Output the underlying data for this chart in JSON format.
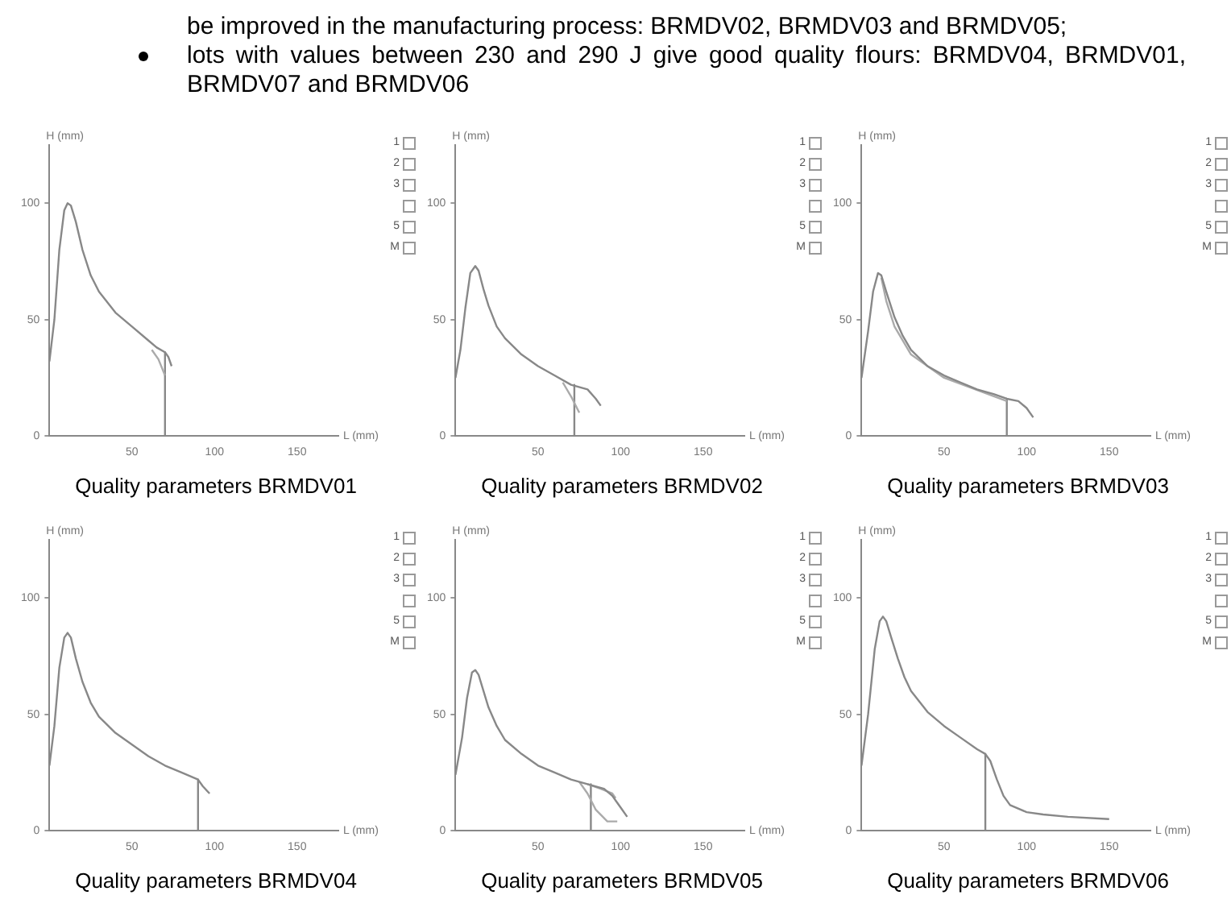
{
  "chart_data": [
    {
      "type": "line",
      "title": "Quality parameters BRMDV01",
      "subtitle": "be improved in the manufacturing process: BRMDV02, BRMDV03 and BRMDV05;\nlots with values between 230 and 290 J give good quality flours: BRMDV04, BRMDV01, BRMDV07 and BRMDV06",
      "xlabel": "L (mm)",
      "ylabel": "H (mm)",
      "xlim": [
        0,
        175
      ],
      "ylim": [
        0,
        125
      ],
      "xticks": [
        50,
        100,
        150
      ],
      "yticks": [
        0,
        50,
        100
      ],
      "grid": false,
      "marker": "none",
      "annotations": [
        "1",
        "2",
        "3",
        "5",
        "M"
      ],
      "series": [
        {
          "color": "#888888",
          "x": [
            0,
            3,
            6,
            9,
            11,
            13,
            16,
            20,
            25,
            30,
            40,
            50,
            60,
            65,
            70,
            72,
            74
          ],
          "values": [
            32,
            50,
            80,
            97,
            100,
            99,
            92,
            80,
            69,
            62,
            53,
            47,
            41,
            38,
            36,
            34,
            30
          ]
        },
        {
          "color": "#aaaaaa",
          "x": [
            62,
            66,
            70
          ],
          "values": [
            37,
            33,
            26
          ]
        },
        {
          "color": "#888888",
          "x": [
            70,
            70
          ],
          "values": [
            36,
            0
          ]
        }
      ]
    },
    {
      "type": "line",
      "title": "Quality parameters BRMDV02",
      "xlabel": "L (mm)",
      "ylabel": "H (mm)",
      "xlim": [
        0,
        175
      ],
      "ylim": [
        0,
        125
      ],
      "xticks": [
        50,
        100,
        150
      ],
      "yticks": [
        0,
        50,
        100
      ],
      "grid": false,
      "marker": "none",
      "annotations": [
        "1",
        "2",
        "3",
        "5",
        "M"
      ],
      "series": [
        {
          "color": "#888888",
          "x": [
            0,
            3,
            6,
            9,
            12,
            14,
            17,
            20,
            25,
            30,
            40,
            50,
            60,
            70,
            80,
            85,
            88
          ],
          "values": [
            25,
            37,
            55,
            70,
            73,
            71,
            63,
            56,
            47,
            42,
            35,
            30,
            26,
            22,
            20,
            16,
            13
          ]
        },
        {
          "color": "#aaaaaa",
          "x": [
            65,
            70,
            75
          ],
          "values": [
            23,
            17,
            10
          ]
        },
        {
          "color": "#888888",
          "x": [
            72,
            72
          ],
          "values": [
            22,
            0
          ]
        }
      ]
    },
    {
      "type": "line",
      "title": "Quality parameters BRMDV03",
      "xlabel": "L (mm)",
      "ylabel": "H (mm)",
      "xlim": [
        0,
        175
      ],
      "ylim": [
        0,
        125
      ],
      "xticks": [
        50,
        100,
        150
      ],
      "yticks": [
        0,
        50,
        100
      ],
      "grid": false,
      "marker": "none",
      "annotations": [
        "1",
        "2",
        "3",
        "5",
        "M"
      ],
      "series": [
        {
          "color": "#888888",
          "x": [
            0,
            4,
            7,
            10,
            12,
            15,
            20,
            25,
            30,
            40,
            50,
            60,
            70,
            80,
            88,
            95,
            100,
            104
          ],
          "values": [
            25,
            45,
            62,
            70,
            69,
            62,
            51,
            43,
            37,
            30,
            26,
            23,
            20,
            18,
            16,
            15,
            12,
            8
          ]
        },
        {
          "color": "#aaaaaa",
          "x": [
            12,
            15,
            20,
            30,
            50,
            88
          ],
          "values": [
            68,
            58,
            47,
            35,
            25,
            15
          ]
        },
        {
          "color": "#888888",
          "x": [
            88,
            88
          ],
          "values": [
            16,
            0
          ]
        }
      ]
    },
    {
      "type": "line",
      "title": "Quality parameters BRMDV04",
      "xlabel": "L (mm)",
      "ylabel": "H (mm)",
      "xlim": [
        0,
        175
      ],
      "ylim": [
        0,
        125
      ],
      "xticks": [
        50,
        100,
        150
      ],
      "yticks": [
        0,
        50,
        100
      ],
      "grid": false,
      "marker": "none",
      "annotations": [
        "1",
        "2",
        "3",
        "5",
        "M"
      ],
      "series": [
        {
          "color": "#888888",
          "x": [
            0,
            3,
            6,
            9,
            11,
            13,
            16,
            20,
            25,
            30,
            40,
            50,
            60,
            70,
            80,
            90,
            93,
            97
          ],
          "values": [
            28,
            45,
            70,
            83,
            85,
            83,
            74,
            64,
            55,
            49,
            42,
            37,
            32,
            28,
            25,
            22,
            19,
            16
          ]
        },
        {
          "color": "#888888",
          "x": [
            90,
            90
          ],
          "values": [
            22,
            0
          ]
        }
      ]
    },
    {
      "type": "line",
      "title": "Quality parameters BRMDV05",
      "xlabel": "L (mm)",
      "ylabel": "H (mm)",
      "xlim": [
        0,
        175
      ],
      "ylim": [
        0,
        125
      ],
      "xticks": [
        50,
        100,
        150
      ],
      "yticks": [
        0,
        50,
        100
      ],
      "grid": false,
      "marker": "none",
      "annotations": [
        "1",
        "2",
        "3",
        "5",
        "M"
      ],
      "series": [
        {
          "color": "#888888",
          "x": [
            0,
            4,
            7,
            10,
            12,
            14,
            17,
            20,
            25,
            30,
            40,
            50,
            60,
            70,
            80,
            90,
            95,
            100,
            104
          ],
          "values": [
            24,
            40,
            57,
            68,
            69,
            67,
            60,
            53,
            45,
            39,
            33,
            28,
            25,
            22,
            20,
            18,
            15,
            10,
            6
          ]
        },
        {
          "color": "#aaaaaa",
          "x": [
            75,
            80,
            85,
            92,
            98
          ],
          "values": [
            21,
            16,
            9,
            4,
            4
          ]
        },
        {
          "color": "#aaaaaa",
          "x": [
            80,
            88,
            95,
            97
          ],
          "values": [
            20,
            18,
            16,
            14
          ]
        },
        {
          "color": "#888888",
          "x": [
            82,
            82
          ],
          "values": [
            20,
            0
          ]
        }
      ]
    },
    {
      "type": "line",
      "title": "Quality parameters BRMDV06",
      "xlabel": "L (mm)",
      "ylabel": "H (mm)",
      "xlim": [
        0,
        175
      ],
      "ylim": [
        0,
        125
      ],
      "xticks": [
        50,
        100,
        150
      ],
      "yticks": [
        0,
        50,
        100
      ],
      "grid": false,
      "marker": "none",
      "annotations": [
        "1",
        "2",
        "3",
        "5",
        "M"
      ],
      "series": [
        {
          "color": "#888888",
          "x": [
            0,
            4,
            8,
            11,
            13,
            15,
            18,
            22,
            26,
            30,
            40,
            50,
            60,
            70,
            75,
            78,
            82,
            86,
            90,
            100,
            110,
            125,
            150
          ],
          "values": [
            28,
            50,
            78,
            90,
            92,
            90,
            83,
            74,
            66,
            60,
            51,
            45,
            40,
            35,
            33,
            30,
            22,
            15,
            11,
            8,
            7,
            6,
            5
          ]
        },
        {
          "color": "#888888",
          "x": [
            75,
            75
          ],
          "values": [
            33,
            0
          ]
        }
      ]
    }
  ]
}
